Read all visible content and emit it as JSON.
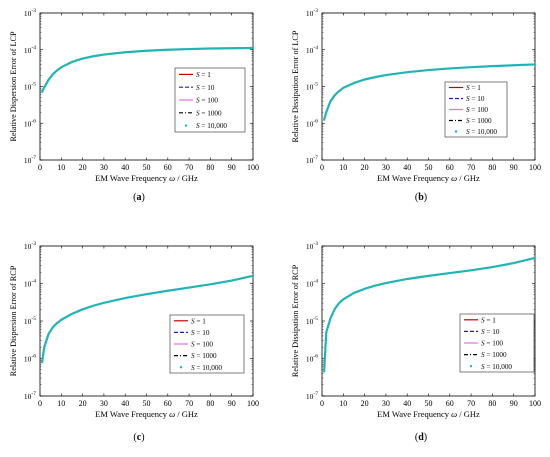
{
  "chart_data": [
    {
      "type": "line",
      "panel_label": "(a)",
      "xlabel_prefix": "EM Wave Frequency ",
      "xlabel_symbol": "ω",
      "xlabel_suffix": " / GHz",
      "ylabel": "Relative Dispersion Error of LCP",
      "xlim": [
        0,
        100
      ],
      "x_ticks": [
        "0",
        "10",
        "20",
        "30",
        "40",
        "50",
        "60",
        "70",
        "80",
        "90",
        "100"
      ],
      "y_ticks": [
        {
          "base": "10",
          "exp": "-7"
        },
        {
          "base": "10",
          "exp": "-6"
        },
        {
          "base": "10",
          "exp": "-5"
        },
        {
          "base": "10",
          "exp": "-4"
        },
        {
          "base": "10",
          "exp": "-3"
        }
      ],
      "ylim_log10": [
        -7,
        -3
      ],
      "y_scale": "log",
      "grid": false,
      "legend_position": "middle-right",
      "x": [
        1,
        2,
        4,
        6,
        8,
        10,
        15,
        20,
        25,
        30,
        40,
        50,
        60,
        70,
        80,
        90,
        100
      ],
      "series": [
        {
          "name_italic": "S",
          "name_rest": " = 1",
          "color": "#c00000",
          "dash": "solid"
        },
        {
          "name_italic": "S",
          "name_rest": " = 10",
          "color": "#1f1fa8",
          "dash": "dashed"
        },
        {
          "name_italic": "S",
          "name_rest": " = 100",
          "color": "#e070e0",
          "dash": "solid"
        },
        {
          "name_italic": "S",
          "name_rest": " = 1000",
          "color": "#000000",
          "dash": "dashdot"
        },
        {
          "name_italic": "S",
          "name_rest": " = 10,000",
          "color": "#20b4b4",
          "dash": "dot",
          "marker": "dot",
          "values": [
            7.2e-06,
            9.5e-06,
            1.52e-05,
            2.15e-05,
            2.75e-05,
            3.35e-05,
            4.65e-05,
            5.75e-05,
            6.65e-05,
            7.4e-05,
            8.55e-05,
            9.4e-05,
            0.0001,
            0.0001045,
            0.000108,
            0.00011,
            0.0001115
          ]
        }
      ]
    },
    {
      "type": "line",
      "panel_label": "(b)",
      "xlabel_prefix": "EM Wave Frequency ",
      "xlabel_symbol": "ω",
      "xlabel_suffix": " / GHz",
      "ylabel": "Relative Dissipation Error of LCP",
      "xlim": [
        0,
        100
      ],
      "x_ticks": [
        "0",
        "10",
        "20",
        "30",
        "40",
        "50",
        "60",
        "70",
        "80",
        "90",
        "100"
      ],
      "y_ticks": [
        {
          "base": "10",
          "exp": "-7"
        },
        {
          "base": "10",
          "exp": "-6"
        },
        {
          "base": "10",
          "exp": "-5"
        },
        {
          "base": "10",
          "exp": "-4"
        },
        {
          "base": "10",
          "exp": "-3"
        }
      ],
      "ylim_log10": [
        -7,
        -3
      ],
      "y_scale": "log",
      "grid": false,
      "legend_position": "middle-right",
      "x": [
        1,
        2,
        4,
        6,
        8,
        10,
        15,
        20,
        25,
        30,
        40,
        50,
        60,
        70,
        80,
        90,
        100
      ],
      "series": [
        {
          "name_italic": "S",
          "name_rest": " = 1",
          "color": "#c00000",
          "dash": "solid"
        },
        {
          "name_italic": "S",
          "name_rest": " = 10",
          "color": "#1f1fa8",
          "dash": "dashed"
        },
        {
          "name_italic": "S",
          "name_rest": " = 100",
          "color": "#e070e0",
          "dash": "solid"
        },
        {
          "name_italic": "S",
          "name_rest": " = 1000",
          "color": "#000000",
          "dash": "dashdot"
        },
        {
          "name_italic": "S",
          "name_rest": " = 10,000",
          "color": "#20b4b4",
          "dash": "dot",
          "marker": "dot",
          "values": [
            1.25e-06,
            2e-06,
            4e-06,
            5.8e-06,
            7.5e-06,
            9.2e-06,
            1.25e-05,
            1.55e-05,
            1.8e-05,
            2.05e-05,
            2.45e-05,
            2.8e-05,
            3.1e-05,
            3.35e-05,
            3.58e-05,
            3.78e-05,
            3.98e-05
          ]
        }
      ]
    },
    {
      "type": "line",
      "panel_label": "(c)",
      "xlabel_prefix": "EM Wave Frequency ",
      "xlabel_symbol": "ω",
      "xlabel_suffix": " / GHz",
      "ylabel": "Relative Dispersion Error of RCP",
      "xlim": [
        0,
        100
      ],
      "x_ticks": [
        "0",
        "10",
        "20",
        "30",
        "40",
        "50",
        "60",
        "70",
        "80",
        "90",
        "100"
      ],
      "y_ticks": [
        {
          "base": "10",
          "exp": "-7"
        },
        {
          "base": "10",
          "exp": "-6"
        },
        {
          "base": "10",
          "exp": "-5"
        },
        {
          "base": "10",
          "exp": "-4"
        },
        {
          "base": "10",
          "exp": "-3"
        }
      ],
      "ylim_log10": [
        -7,
        -3
      ],
      "y_scale": "log",
      "grid": false,
      "legend_position": "lower-right",
      "x": [
        1,
        2,
        4,
        6,
        8,
        10,
        15,
        20,
        25,
        30,
        40,
        50,
        60,
        70,
        80,
        90,
        100
      ],
      "series": [
        {
          "name_italic": "S",
          "name_rest": " = 1",
          "color": "#c00000",
          "dash": "solid"
        },
        {
          "name_italic": "S",
          "name_rest": " = 10",
          "color": "#1f1fa8",
          "dash": "dashed"
        },
        {
          "name_italic": "S",
          "name_rest": " = 100",
          "color": "#e070e0",
          "dash": "solid"
        },
        {
          "name_italic": "S",
          "name_rest": " = 1000",
          "color": "#000000",
          "dash": "dashdot"
        },
        {
          "name_italic": "S",
          "name_rest": " = 10,000",
          "color": "#20b4b4",
          "dash": "dot",
          "marker": "dot",
          "values": [
            8e-07,
            2e-06,
            4.5e-06,
            6.8e-06,
            8.8e-06,
            1.08e-05,
            1.55e-05,
            2.05e-05,
            2.55e-05,
            3.05e-05,
            4.1e-05,
            5.2e-05,
            6.4e-05,
            7.8e-05,
            9.5e-05,
            0.00012,
            0.00016
          ]
        }
      ]
    },
    {
      "type": "line",
      "panel_label": "(d)",
      "xlabel_prefix": "EM Wave Frequency ",
      "xlabel_symbol": "ω",
      "xlabel_suffix": " / GHz",
      "ylabel": "Relative Dissipation Error of RCP",
      "xlim": [
        0,
        100
      ],
      "x_ticks": [
        "0",
        "10",
        "20",
        "30",
        "40",
        "50",
        "60",
        "70",
        "80",
        "90",
        "100"
      ],
      "y_ticks": [
        {
          "base": "10",
          "exp": "-7"
        },
        {
          "base": "10",
          "exp": "-6"
        },
        {
          "base": "10",
          "exp": "-5"
        },
        {
          "base": "10",
          "exp": "-4"
        },
        {
          "base": "10",
          "exp": "-3"
        }
      ],
      "ylim_log10": [
        -7,
        -3
      ],
      "y_scale": "log",
      "grid": false,
      "legend_position": "lower-right",
      "x": [
        1,
        2,
        4,
        6,
        8,
        10,
        15,
        20,
        25,
        30,
        40,
        50,
        60,
        70,
        80,
        90,
        100
      ],
      "series": [
        {
          "name_italic": "S",
          "name_rest": " = 1",
          "color": "#c00000",
          "dash": "solid"
        },
        {
          "name_italic": "S",
          "name_rest": " = 10",
          "color": "#1f1fa8",
          "dash": "dashed"
        },
        {
          "name_italic": "S",
          "name_rest": " = 100",
          "color": "#e070e0",
          "dash": "solid"
        },
        {
          "name_italic": "S",
          "name_rest": " = 1000",
          "color": "#000000",
          "dash": "dashdot"
        },
        {
          "name_italic": "S",
          "name_rest": " = 10,000",
          "color": "#20b4b4",
          "dash": "dot",
          "marker": "dot",
          "values": [
            4.5e-07,
            5e-06,
            1.2e-05,
            2.1e-05,
            3e-05,
            3.8e-05,
            5.6e-05,
            7.2e-05,
            8.8e-05,
            0.000103,
            0.000132,
            0.00016,
            0.00019,
            0.000225,
            0.000275,
            0.00035,
            0.00048
          ]
        }
      ]
    }
  ]
}
